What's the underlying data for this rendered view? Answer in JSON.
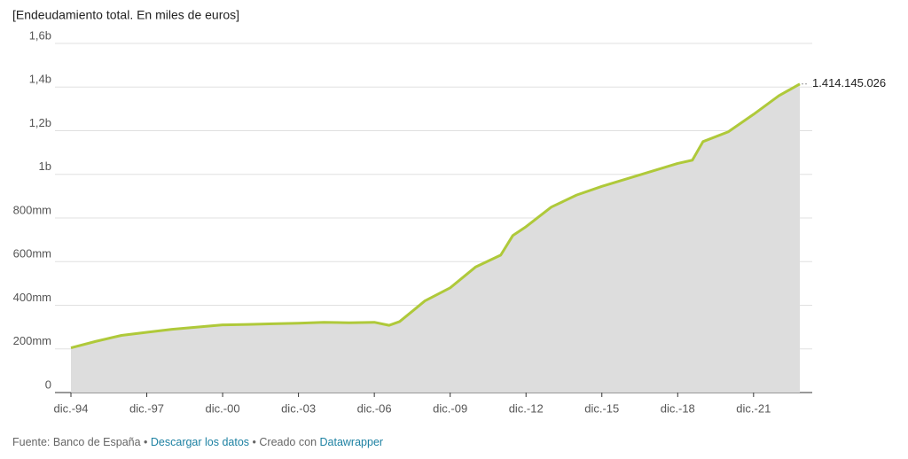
{
  "chart_data": {
    "type": "area",
    "title": "[Endeudamiento total. En miles de euros]",
    "x": [
      1994.92,
      1995.92,
      1996.92,
      1997.92,
      1998.92,
      1999.92,
      2000.92,
      2001.92,
      2002.92,
      2003.92,
      2004.92,
      2005.92,
      2006.92,
      2007.5,
      2007.92,
      2008.5,
      2008.92,
      2009.92,
      2010.92,
      2011.92,
      2012.4,
      2012.92,
      2013.92,
      2014.92,
      2015.92,
      2016.92,
      2017.92,
      2018.92,
      2019.5,
      2019.92,
      2020.92,
      2021.92,
      2022.92,
      2023.75
    ],
    "values": [
      205000000,
      235000000,
      262000000,
      276000000,
      290000000,
      300000000,
      310000000,
      312000000,
      315000000,
      318000000,
      322000000,
      320000000,
      322000000,
      308000000,
      325000000,
      380000000,
      420000000,
      480000000,
      575000000,
      630000000,
      720000000,
      760000000,
      850000000,
      905000000,
      945000000,
      980000000,
      1015000000,
      1050000000,
      1065000000,
      1150000000,
      1195000000,
      1275000000,
      1360000000,
      1414145026
    ],
    "value_labels": [
      null,
      null,
      null,
      null,
      null,
      null,
      null,
      null,
      null,
      null,
      null,
      null,
      null,
      null,
      null,
      null,
      null,
      null,
      null,
      null,
      null,
      null,
      null,
      null,
      null,
      null,
      null,
      null,
      null,
      null,
      null,
      null,
      null,
      "1.414.145.026"
    ],
    "color": "#afc93a",
    "area_color": "#dddddd",
    "xlim": [
      1994.92,
      2023.75
    ],
    "xticks": [
      {
        "value": 1994.92,
        "label": "dic.-94"
      },
      {
        "value": 1997.92,
        "label": "dic.-97"
      },
      {
        "value": 2000.92,
        "label": "dic.-00"
      },
      {
        "value": 2003.92,
        "label": "dic.-03"
      },
      {
        "value": 2006.92,
        "label": "dic.-06"
      },
      {
        "value": 2009.92,
        "label": "dic.-09"
      },
      {
        "value": 2012.92,
        "label": "dic.-12"
      },
      {
        "value": 2015.92,
        "label": "dic.-15"
      },
      {
        "value": 2018.92,
        "label": "dic.-18"
      },
      {
        "value": 2021.92,
        "label": "dic.-21"
      }
    ],
    "ylim": [
      0,
      1600000000
    ],
    "yticks": [
      0,
      {
        "value": 200000000,
        "label": "200mm"
      },
      {
        "value": 400000000,
        "label": "400mm"
      },
      {
        "value": 600000000,
        "label": "600mm"
      },
      {
        "value": 800000000,
        "label": "800mm"
      },
      {
        "value": 1000000000,
        "label": "1b"
      },
      {
        "value": 1200000000,
        "label": "1,2b"
      },
      {
        "value": 1400000000,
        "label": "1,4b"
      },
      {
        "value": 1600000000,
        "label": "1,6b"
      }
    ],
    "grid": true
  },
  "footer": {
    "source": "Fuente: Banco de España",
    "download": "Descargar los datos",
    "created": "Creado con",
    "tool": "Datawrapper"
  }
}
